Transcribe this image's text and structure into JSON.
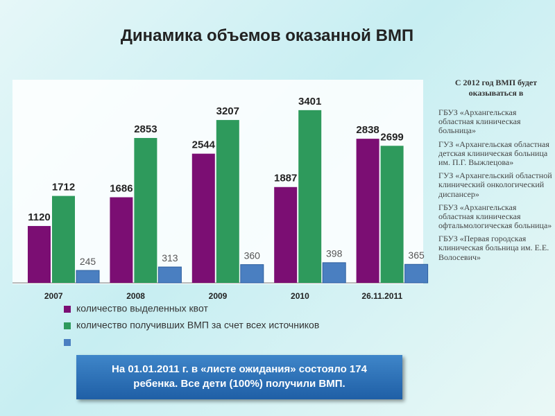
{
  "chart_data": {
    "type": "bar",
    "title": "Динамика объемов оказанной ВМП",
    "categories": [
      "2007",
      "2008",
      "2009",
      "2010",
      "26.11.2011"
    ],
    "series": [
      {
        "name": "количество выделенных квот",
        "color": "#7b0e73",
        "values": [
          1120,
          1686,
          2544,
          1887,
          2838
        ]
      },
      {
        "name": "количество получивших ВМП за счет всех источников",
        "color": "#2e9a5c",
        "values": [
          1712,
          2853,
          3207,
          3401,
          2699
        ]
      },
      {
        "color": "#4a7fc1",
        "values": [
          245,
          313,
          360,
          398,
          365
        ]
      }
    ],
    "ylim": [
      0,
      4000
    ]
  },
  "side_panel": {
    "heading": "С 2012 год ВМП будет оказываться в",
    "items": [
      "ГБУЗ «Архангельская областная клиническая больница»",
      "ГУЗ «Архангельская областная детская клиническая больница им. П.Г. Выжлецова»",
      "ГУЗ «Архангельский областной клинический онкологический диспансер»",
      "ГБУЗ «Архангельская областная клиническая офтальмологическая больница»",
      "ГБУЗ «Первая городская клиническая больница им. Е.Е. Волосевич»"
    ]
  },
  "note": "На 01.01.2011 г. в «листе ожидания» состояло 174 ребенка. Все дети (100%) получили ВМП."
}
